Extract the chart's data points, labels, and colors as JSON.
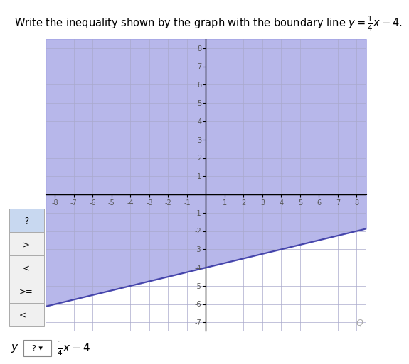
{
  "title": "Write the inequality shown by the graph with the boundary line $y = \\frac{1}{4}x - 4$.",
  "title_fontsize": 10.5,
  "xlim": [
    -8.5,
    8.5
  ],
  "ylim": [
    -7.5,
    8.5
  ],
  "xticks": [
    -8,
    -7,
    -6,
    -5,
    -4,
    -3,
    -2,
    -1,
    1,
    2,
    3,
    4,
    5,
    6,
    7,
    8
  ],
  "yticks": [
    -7,
    -6,
    -5,
    -4,
    -3,
    -2,
    -1,
    1,
    2,
    3,
    4,
    5,
    6,
    7,
    8
  ],
  "slope": 0.25,
  "intercept": -4,
  "shade_color": "#8888dd",
  "shade_alpha": 0.6,
  "line_color": "#4444aa",
  "grid_color": "#aaaacc",
  "background_color": "#ffffff",
  "plot_bg_color": "#ffffff",
  "dropdown_options": [
    "?",
    ">",
    "<",
    ">=",
    "<="
  ],
  "dropdown_highlight_color": "#c8d8f0",
  "dropdown_normal_color": "#f0f0f0",
  "bottom_formula": "$\\frac{1}{4}x - 4$",
  "magnifier_color": "#aaaaaa"
}
